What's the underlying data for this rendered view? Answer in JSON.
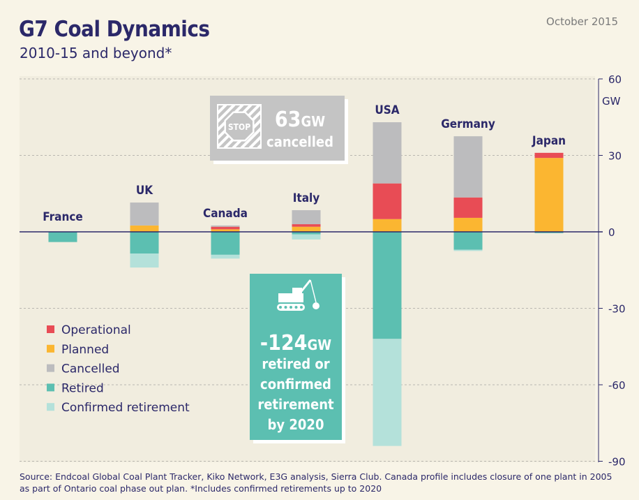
{
  "header": {
    "title": "G7 Coal Dynamics",
    "subtitle": "2010-15 and beyond*",
    "date": "October 2015"
  },
  "colors": {
    "operational": "#e84c55",
    "planned": "#fbb631",
    "cancelled": "#bcbcbe",
    "retired": "#5cbfb1",
    "confirmed_retirement": "#b4e1da",
    "text": "#2b2869",
    "callout_gray": "#c4c4c4",
    "callout_teal": "#5cbfb1"
  },
  "callouts": {
    "cancelled": {
      "stop_label": "STOP",
      "value": "63",
      "unit": "GW",
      "label": "cancelled"
    },
    "retired": {
      "value": "-124",
      "unit": "GW",
      "lines": [
        "retired or",
        "confirmed",
        "retirement",
        "by 2020"
      ]
    }
  },
  "chart_data": {
    "type": "bar",
    "stacked": true,
    "title": "G7 Coal Dynamics",
    "subtitle": "2010-15 and beyond*",
    "unit": "GW",
    "ylim": [
      -90,
      60
    ],
    "yticks": [
      60,
      30,
      0,
      -30,
      -60,
      -90
    ],
    "ytick_labels": [
      "60",
      "30",
      "0",
      "-30",
      "-60",
      "-90"
    ],
    "grid": true,
    "legend_position": "bottom-left",
    "categories": [
      "France",
      "UK",
      "Canada",
      "Italy",
      "USA",
      "Germany",
      "Japan"
    ],
    "series": [
      {
        "name": "Operational",
        "key": "operational",
        "values": [
          0,
          0,
          1,
          1,
          14,
          8,
          2
        ]
      },
      {
        "name": "Planned",
        "key": "planned",
        "values": [
          0,
          2.5,
          1,
          2,
          5,
          5.5,
          29
        ]
      },
      {
        "name": "Cancelled",
        "key": "cancelled",
        "values": [
          0,
          9,
          0.5,
          5.5,
          24,
          24,
          0
        ]
      },
      {
        "name": "Retired",
        "key": "retired",
        "values": [
          -4,
          -8.5,
          -9,
          -1,
          -42,
          -7,
          -0.5
        ]
      },
      {
        "name": "Confirmed retirement",
        "key": "confirmed_retirement",
        "values": [
          0,
          -5.5,
          -1.5,
          -2,
          -42,
          -0.5,
          0
        ]
      }
    ]
  },
  "footer": {
    "source": "Source: Endcoal Global Coal Plant Tracker, Kiko Network, E3G analysis, Sierra Club. Canada profile includes closure of one plant in 2005 as part of Ontario coal phase out plan. *Includes confirmed retirements up to 2020"
  }
}
